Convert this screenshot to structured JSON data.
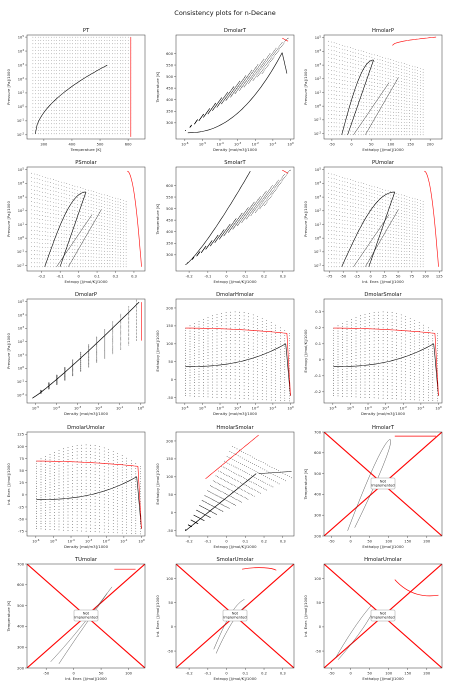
{
  "suptitle": "Consistency plots for n-Decane",
  "colors": {
    "line": "#000000",
    "envelope": "#ff0000",
    "crossing": "#ff0000",
    "note_box": "#ffffff"
  },
  "chart_data": [
    {
      "title": "PT",
      "type": "scatter",
      "xlabel": "Temperature [K]",
      "ylabel": "Pressure [Pa]/1000",
      "xlim": [
        240,
        660
      ],
      "ylim": [
        -2.3,
        5.15
      ],
      "ylog": true,
      "xticks": [
        300,
        400,
        500,
        600
      ],
      "yticks": [
        -2,
        -1,
        0,
        1,
        2,
        3,
        4,
        5
      ],
      "kind": "pt"
    },
    {
      "title": "DmolarT",
      "type": "scatter",
      "xlabel": "Density [mol/m3]/1000",
      "ylabel": "Temperature [K]",
      "xlog": true,
      "xlim": [
        -6.5,
        0.2
      ],
      "ylim": [
        230,
        680
      ],
      "xticks": [
        -6,
        -5,
        -4,
        -3,
        -2,
        -1,
        0
      ],
      "yticks": [
        300,
        350,
        400,
        450,
        500,
        550,
        600
      ],
      "kind": "dt"
    },
    {
      "title": "HmolarP",
      "type": "scatter",
      "xlabel": "Enthalpy [J/mol]/1000",
      "ylabel": "Pressure [Pa]/1000",
      "xlim": [
        -70,
        230
      ],
      "ylim": [
        -2.4,
        5.2
      ],
      "ylog": true,
      "xticks": [
        -50,
        0,
        50,
        100,
        150,
        200
      ],
      "yticks": [
        -2,
        -1,
        0,
        1,
        2,
        3,
        4,
        5
      ],
      "kind": "hp"
    },
    {
      "title": "PSmolar",
      "type": "scatter",
      "xlabel": "Entropy [J/mol/K]/1000",
      "ylabel": "Pressure [Pa]/1000",
      "xlim": [
        -0.28,
        0.36
      ],
      "ylim": [
        -2.4,
        5.2
      ],
      "ylog": true,
      "xticks": [
        -0.2,
        -0.1,
        0.0,
        0.1,
        0.2,
        0.3
      ],
      "yticks": [
        -2,
        -1,
        0,
        1,
        2,
        3,
        4,
        5
      ],
      "kind": "ps"
    },
    {
      "title": "SmolarT",
      "type": "scatter",
      "xlabel": "Entropy [J/mol/K]/1000",
      "ylabel": "Temperature [K]",
      "xlim": [
        -0.27,
        0.36
      ],
      "ylim": [
        230,
        680
      ],
      "xticks": [
        -0.2,
        -0.1,
        0.0,
        0.1,
        0.2,
        0.3
      ],
      "yticks": [
        300,
        350,
        400,
        450,
        500,
        550,
        600
      ],
      "kind": "st"
    },
    {
      "title": "PUmolar",
      "type": "scatter",
      "xlabel": "Int. Ener. [J/mol]/1000",
      "ylabel": "Pressure [Pa]/1000",
      "xlim": [
        -85,
        130
      ],
      "ylim": [
        -2.4,
        5.2
      ],
      "ylog": true,
      "xticks": [
        -75,
        -50,
        -25,
        0,
        25,
        50,
        75,
        100,
        125
      ],
      "yticks": [
        -2,
        -1,
        0,
        1,
        2,
        3,
        4,
        5
      ],
      "kind": "pu"
    },
    {
      "title": "DmolarP",
      "type": "scatter",
      "xlabel": "Density [mol/m3]/1000",
      "ylabel": "Pressure [Pa]/1000",
      "xlog": true,
      "ylog": true,
      "xlim": [
        -5.4,
        0.2
      ],
      "ylim": [
        -2.6,
        5.2
      ],
      "xticks": [
        -5,
        -4,
        -3,
        -2,
        -1,
        0
      ],
      "yticks": [
        -2,
        -1,
        0,
        1,
        2,
        3,
        4,
        5
      ],
      "kind": "dp"
    },
    {
      "title": "DmolarHmolar",
      "type": "scatter",
      "xlabel": "Density [mol/m3]/1000",
      "ylabel": "Enthalpy [J/mol]/1000",
      "xlog": true,
      "xlim": [
        -6.5,
        0.2
      ],
      "ylim": [
        -65,
        225
      ],
      "xticks": [
        -6,
        -5,
        -4,
        -3,
        -2,
        -1,
        0
      ],
      "yticks": [
        -50,
        0,
        50,
        100,
        150,
        200
      ],
      "kind": "dh"
    },
    {
      "title": "DmolarSmolar",
      "type": "scatter",
      "xlabel": "Density [mol/m3]/1000",
      "ylabel": "Entropy [J/mol/K]/1000",
      "xlog": true,
      "xlim": [
        -6.5,
        0.2
      ],
      "ylim": [
        -0.27,
        0.38
      ],
      "xticks": [
        -6,
        -5,
        -4,
        -3,
        -2,
        -1,
        0
      ],
      "yticks": [
        -0.2,
        -0.1,
        0.0,
        0.1,
        0.2,
        0.3
      ],
      "kind": "ds"
    },
    {
      "title": "DmolarUmolar",
      "type": "scatter",
      "xlabel": "Density [mol/m3]/1000",
      "ylabel": "Int. Ener. [J/mol]/1000",
      "xlog": true,
      "xlim": [
        -6.5,
        0.2
      ],
      "ylim": [
        -85,
        130
      ],
      "xticks": [
        -6,
        -5,
        -4,
        -3,
        -2,
        -1,
        0
      ],
      "yticks": [
        -75,
        -50,
        -25,
        0,
        25,
        50,
        75,
        100,
        125
      ],
      "kind": "du"
    },
    {
      "title": "HmolarSmolar",
      "type": "scatter",
      "xlabel": "Entropy [J/mol/K]/1000",
      "ylabel": "Enthalpy [J/mol]/1000",
      "xlim": [
        -0.27,
        0.36
      ],
      "ylim": [
        -65,
        225
      ],
      "xticks": [
        -0.2,
        -0.1,
        0.0,
        0.1,
        0.2,
        0.3
      ],
      "yticks": [
        -50,
        0,
        50,
        100,
        150,
        200
      ],
      "kind": "hs"
    },
    {
      "title": "HmolarT",
      "type": "line",
      "xlabel": "Enthalpy [J/mol]/1000",
      "ylabel": "Temperature [K]",
      "xlim": [
        -70,
        240
      ],
      "ylim": [
        200,
        700
      ],
      "xticks": [
        -50,
        0,
        50,
        100,
        150,
        200
      ],
      "yticks": [
        200,
        300,
        400,
        500,
        600,
        700
      ],
      "kind": "ni",
      "note": "Not\nImplemented"
    },
    {
      "title": "TUmolar",
      "type": "line",
      "xlabel": "Int. Ener. [J/mol]/1000",
      "ylabel": "Temperature [K]",
      "xlim": [
        -85,
        130
      ],
      "ylim": [
        200,
        700
      ],
      "xticks": [
        -50,
        0,
        50,
        100
      ],
      "yticks": [
        200,
        300,
        400,
        500,
        600,
        700
      ],
      "kind": "ni",
      "note": "Not\nImplemented"
    },
    {
      "title": "SmolarUmolar",
      "type": "line",
      "xlabel": "Entropy [J/mol/K]/1000",
      "ylabel": "Int. Ener. [J/mol]/1000",
      "xlim": [
        -0.27,
        0.36
      ],
      "ylim": [
        -85,
        130
      ],
      "xticks": [
        -0.2,
        -0.1,
        0.0,
        0.1,
        0.2,
        0.3
      ],
      "yticks": [
        -50,
        0,
        50,
        100
      ],
      "kind": "ni",
      "note": "Not\nImplemented"
    },
    {
      "title": "HmolarUmolar",
      "type": "line",
      "xlabel": "Enthalpy [J/mol]/1000",
      "ylabel": "Int. Ener. [J/mol]/1000",
      "xlim": [
        -70,
        240
      ],
      "ylim": [
        -85,
        130
      ],
      "xticks": [
        -50,
        0,
        50,
        100,
        150,
        200
      ],
      "yticks": [
        -50,
        0,
        50,
        100
      ],
      "kind": "ni",
      "note": "Not\nImplemented"
    }
  ]
}
